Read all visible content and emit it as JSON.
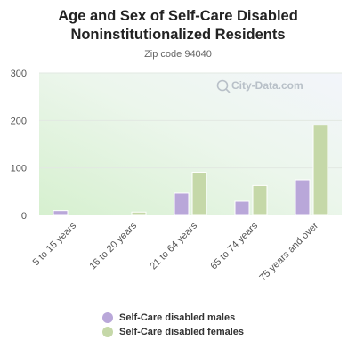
{
  "chart_data": {
    "type": "bar",
    "title": "Age and Sex of Self-Care Disabled Noninstitutionalized Residents",
    "title_lines": [
      "Age and Sex of Self-Care Disabled",
      "Noninstitutionalized Residents"
    ],
    "subtitle": "Zip code 94040",
    "watermark": "City-Data.com",
    "categories": [
      "5 to 15 years",
      "16 to 20 years",
      "21 to 64 years",
      "65 to 74 years",
      "75 years and over"
    ],
    "series": [
      {
        "name": "Self-Care disabled males",
        "color": "#b9a7d9",
        "values": [
          10,
          0,
          47,
          30,
          75
        ]
      },
      {
        "name": "Self-Care disabled females",
        "color": "#c5d8a8",
        "values": [
          0,
          7,
          91,
          63,
          190
        ]
      }
    ],
    "ylim": [
      0,
      300
    ],
    "yticks": [
      0,
      100,
      200,
      300
    ],
    "grid": true,
    "legend_position": "bottom"
  }
}
